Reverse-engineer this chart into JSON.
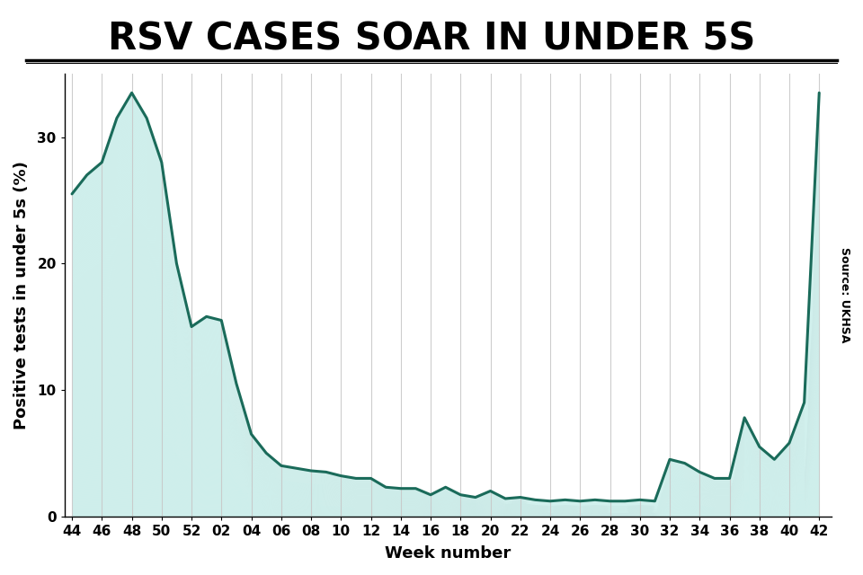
{
  "title": "RSV CASES SOAR IN UNDER 5S",
  "xlabel": "Week number",
  "ylabel": "Positive tests in under 5s (%)",
  "source": "Source: UKHSA",
  "line_color": "#1a6b5a",
  "fill_color": "#7dd4cc",
  "background_color": "#ffffff",
  "grid_color": "#c8c8c8",
  "x_labels": [
    "44",
    "46",
    "48",
    "50",
    "52",
    "02",
    "04",
    "06",
    "08",
    "10",
    "12",
    "14",
    "16",
    "18",
    "20",
    "22",
    "24",
    "26",
    "28",
    "30",
    "32",
    "34",
    "36",
    "38",
    "40",
    "42"
  ],
  "x_tick_positions": [
    0,
    2,
    4,
    6,
    8,
    10,
    12,
    14,
    16,
    18,
    20,
    22,
    24,
    26,
    28,
    30,
    32,
    34,
    36,
    38,
    40,
    42,
    44,
    46,
    48,
    50
  ],
  "y_data": {
    "0": 25.5,
    "1": 27.0,
    "2": 28.0,
    "3": 31.5,
    "4": 33.5,
    "5": 31.5,
    "6": 28.0,
    "7": 20.0,
    "8": 15.0,
    "9": 15.8,
    "10": 15.5,
    "11": 10.5,
    "12": 6.5,
    "13": 5.0,
    "14": 4.0,
    "15": 3.8,
    "16": 3.6,
    "17": 3.5,
    "18": 3.2,
    "19": 3.0,
    "20": 3.0,
    "21": 2.3,
    "22": 2.2,
    "23": 2.2,
    "24": 1.7,
    "25": 2.3,
    "26": 1.7,
    "27": 1.5,
    "28": 2.0,
    "29": 1.4,
    "30": 1.5,
    "31": 1.3,
    "32": 1.2,
    "33": 1.3,
    "34": 1.2,
    "35": 1.3,
    "36": 1.2,
    "37": 1.2,
    "38": 1.3,
    "39": 1.2,
    "40": 4.5,
    "41": 4.2,
    "42": 3.5,
    "43": 3.0,
    "44": 3.0,
    "45": 7.8,
    "46": 5.5,
    "47": 4.5,
    "48": 5.8,
    "49": 9.0,
    "50": 33.5
  },
  "xlim": [
    -0.5,
    50.8
  ],
  "ylim": [
    0,
    35
  ],
  "yticks": [
    0,
    10,
    20,
    30
  ],
  "title_fontsize": 30,
  "axis_label_fontsize": 13,
  "tick_fontsize": 11
}
